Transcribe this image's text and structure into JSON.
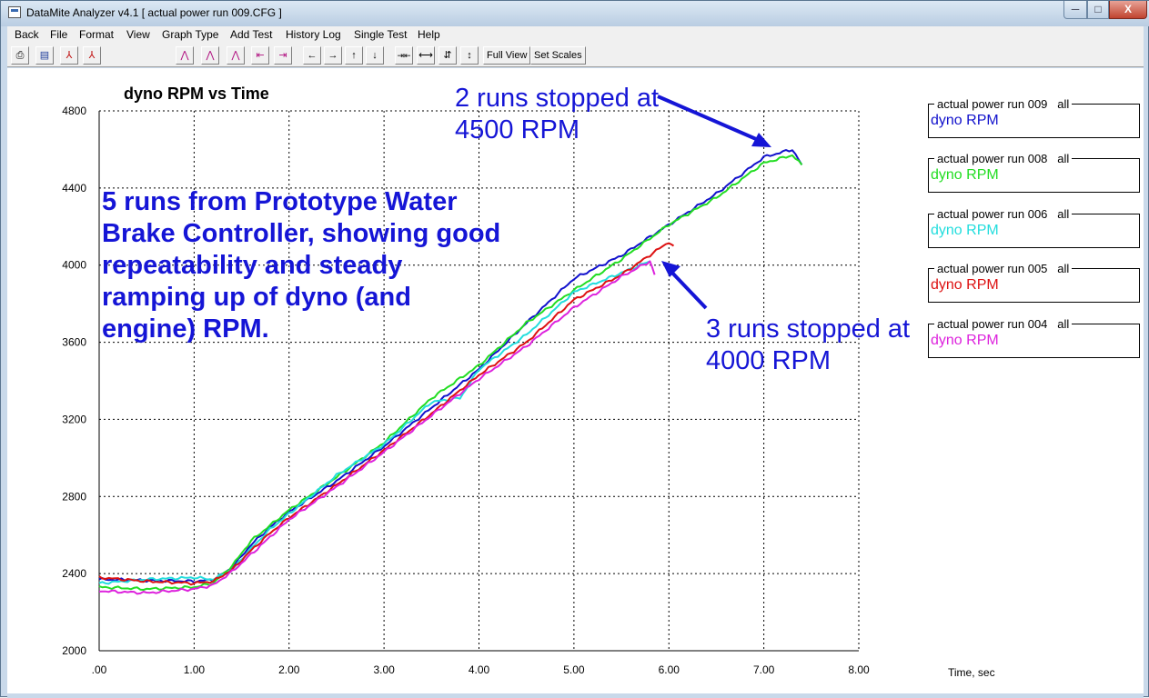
{
  "window": {
    "title": "DataMite Analyzer v4.1  [ actual power run 009.CFG ]",
    "controls": {
      "minimize": "─",
      "maximize": "□",
      "close": "X"
    }
  },
  "menu": [
    "Back",
    "File",
    "Format",
    "View",
    "Graph Type",
    "Add Test",
    "History Log",
    "Single Test",
    "Help"
  ],
  "toolbar": {
    "buttons": [
      {
        "name": "print-icon",
        "glyph": "⎙"
      },
      {
        "name": "save-icon",
        "glyph": "▤"
      },
      {
        "name": "pdf-icon",
        "glyph": "⅄"
      },
      {
        "name": "pdf-export-icon",
        "glyph": "⅄"
      },
      {
        "name": "graph-type-1-icon",
        "glyph": "⋀"
      },
      {
        "name": "graph-type-2-icon",
        "glyph": "⋀"
      },
      {
        "name": "graph-type-3-icon",
        "glyph": "⋀"
      },
      {
        "name": "cursor-left-icon",
        "glyph": "⇤"
      },
      {
        "name": "cursor-right-icon",
        "glyph": "⇥"
      },
      {
        "name": "arrow-left-icon",
        "glyph": "←"
      },
      {
        "name": "arrow-right-icon",
        "glyph": "→"
      },
      {
        "name": "arrow-up-icon",
        "glyph": "↑"
      },
      {
        "name": "arrow-down-icon",
        "glyph": "↓"
      },
      {
        "name": "zoom-in-x-icon",
        "glyph": "⇥⇤"
      },
      {
        "name": "zoom-out-x-icon",
        "glyph": "⟷"
      },
      {
        "name": "zoom-in-y-icon",
        "glyph": "⇵"
      },
      {
        "name": "zoom-out-y-icon",
        "glyph": "↕"
      }
    ],
    "full_view": "Full View",
    "set_scales": "Set Scales"
  },
  "legend": [
    {
      "run": "actual power run 009   all",
      "series": "dyno RPM",
      "color": "#1111cc"
    },
    {
      "run": "actual power run 008   all",
      "series": "dyno RPM",
      "color": "#22dd22"
    },
    {
      "run": "actual power run 006   all",
      "series": "dyno RPM",
      "color": "#22dddd"
    },
    {
      "run": "actual power run 005   all",
      "series": "dyno RPM",
      "color": "#dd1111"
    },
    {
      "run": "actual power run 004   all",
      "series": "dyno RPM",
      "color": "#dd22dd"
    }
  ],
  "annotations": {
    "main": "5 runs from Prototype Water Brake Controller, showing good repeatability and steady ramping up of dyno (and engine) RPM.",
    "top": "2 runs stopped at 4500 RPM",
    "middle": "3 runs stopped at 4000 RPM",
    "color": "#1515d6"
  },
  "chart_data": {
    "type": "line",
    "title": "dyno RPM vs Time",
    "xlabel": "Time, sec",
    "ylabel": "",
    "xlim": [
      0,
      8
    ],
    "ylim": [
      2000,
      4800
    ],
    "x_ticks": [
      ".00",
      "1.00",
      "2.00",
      "3.00",
      "4.00",
      "5.00",
      "6.00",
      "7.00",
      "8.00"
    ],
    "y_ticks": [
      "2000",
      "2400",
      "2800",
      "3200",
      "3600",
      "4000",
      "4400",
      "4800"
    ],
    "grid": true,
    "series": [
      {
        "name": "actual power run 009",
        "color": "#1111cc",
        "x": [
          0,
          0.5,
          1.0,
          1.2,
          1.4,
          1.6,
          1.8,
          2.0,
          2.5,
          3.0,
          3.5,
          4.0,
          4.5,
          5.0,
          5.5,
          6.0,
          6.5,
          7.0,
          7.3,
          7.4
        ],
        "y": [
          2370,
          2365,
          2360,
          2368,
          2430,
          2550,
          2640,
          2720,
          2880,
          3060,
          3260,
          3460,
          3700,
          3930,
          4050,
          4210,
          4370,
          4560,
          4600,
          4520
        ]
      },
      {
        "name": "actual power run 008",
        "color": "#22dd22",
        "x": [
          0,
          0.5,
          1.0,
          1.2,
          1.4,
          1.6,
          1.8,
          2.0,
          2.5,
          3.0,
          3.5,
          4.0,
          4.5,
          5.0,
          5.5,
          6.0,
          6.5,
          7.0,
          7.3,
          7.4
        ],
        "y": [
          2330,
          2320,
          2330,
          2350,
          2440,
          2570,
          2650,
          2730,
          2900,
          3080,
          3310,
          3480,
          3700,
          3870,
          4030,
          4210,
          4350,
          4530,
          4570,
          4520
        ]
      },
      {
        "name": "actual power run 006",
        "color": "#22dddd",
        "x": [
          0,
          0.5,
          1.0,
          1.2,
          1.4,
          1.6,
          1.8,
          2.0,
          2.5,
          3.0,
          3.5,
          3.8,
          4.0,
          4.5,
          5.0,
          5.5,
          5.8
        ],
        "y": [
          2350,
          2370,
          2380,
          2370,
          2420,
          2530,
          2630,
          2710,
          2910,
          3070,
          3290,
          3310,
          3460,
          3640,
          3860,
          3960,
          4020
        ]
      },
      {
        "name": "actual power run 005",
        "color": "#dd1111",
        "x": [
          0,
          0.5,
          1.0,
          1.2,
          1.4,
          1.6,
          1.8,
          2.0,
          2.5,
          3.0,
          3.5,
          4.0,
          4.5,
          5.0,
          5.5,
          6.0,
          6.05
        ],
        "y": [
          2380,
          2360,
          2350,
          2360,
          2420,
          2520,
          2610,
          2690,
          2860,
          3040,
          3230,
          3430,
          3600,
          3820,
          3950,
          4120,
          4100
        ]
      },
      {
        "name": "actual power run 004",
        "color": "#dd22dd",
        "x": [
          0,
          0.5,
          1.0,
          1.2,
          1.4,
          1.6,
          1.8,
          2.0,
          2.5,
          3.0,
          3.5,
          4.0,
          4.5,
          5.0,
          5.5,
          5.8,
          5.85
        ],
        "y": [
          2310,
          2300,
          2320,
          2340,
          2410,
          2500,
          2590,
          2680,
          2850,
          3030,
          3220,
          3410,
          3580,
          3780,
          3940,
          4020,
          3950
        ]
      }
    ]
  }
}
